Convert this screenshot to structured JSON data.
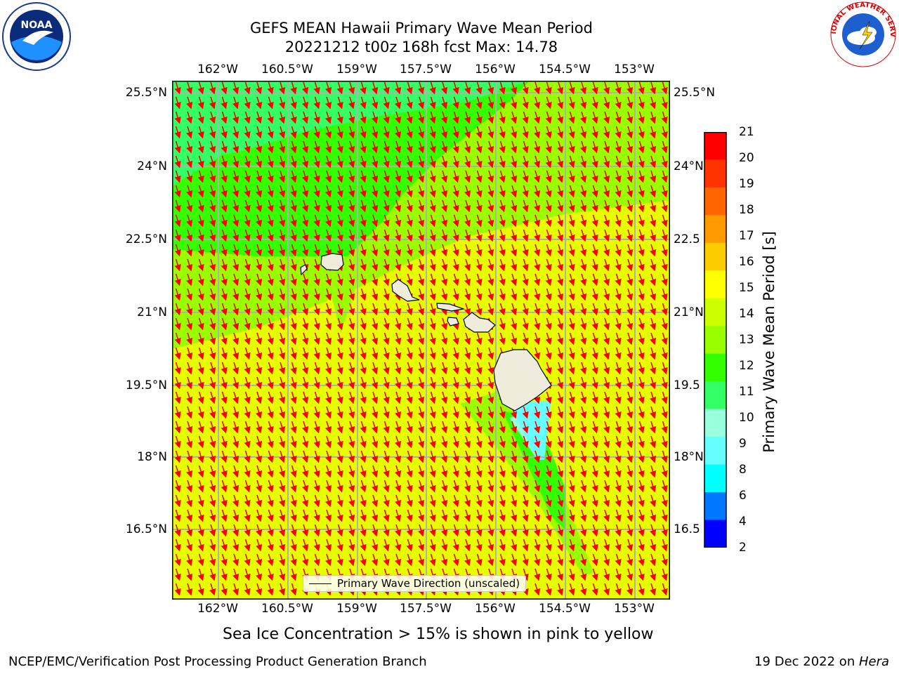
{
  "header": {
    "title_line1": "GEFS MEAN Hawaii Primary Wave Mean Period",
    "title_line2": "20221212 t00z 168h fcst   Max: 14.78"
  },
  "logos": {
    "left": {
      "name": "noaa-logo",
      "text": "NOAA"
    },
    "right": {
      "name": "nws-logo",
      "text": "NATIONAL WEATHER SERVICE"
    }
  },
  "map": {
    "lon_ticks": [
      "162°W",
      "160.5°W",
      "159°W",
      "157.5°W",
      "156°W",
      "154.5°W",
      "153°W"
    ],
    "lat_ticks_left": [
      "25.5°N",
      "24°N",
      "22.5°N",
      "21°N",
      "19.5°N",
      "18°N",
      "16.5°N"
    ],
    "lat_ticks_right": [
      "25.5°N",
      "24°N",
      "22.5",
      "21°N",
      "19.5",
      "18°N",
      "16.5"
    ],
    "legend": "Primary Wave Direction (unscaled)",
    "vector_color": "#ff0000",
    "grid_color": "#b0b0b0",
    "land_color": "#f0ecdc"
  },
  "colorbar": {
    "label": "Primary Wave Mean Period [s]",
    "ticks": [
      "21",
      "20",
      "19",
      "18",
      "17",
      "16",
      "15",
      "14",
      "13",
      "12",
      "11",
      "10",
      "9",
      "8",
      "6",
      "4",
      "2"
    ],
    "colors": [
      "#ff0000",
      "#ff3300",
      "#ff6600",
      "#ff9900",
      "#ffcc00",
      "#ffff00",
      "#ccff00",
      "#99ff00",
      "#33ff00",
      "#33ff66",
      "#99ffdd",
      "#66ffff",
      "#00ffff",
      "#0077ff",
      "#0000ff"
    ]
  },
  "notes": {
    "sea_ice": "Sea Ice Concentration > 15% is shown in pink to yellow"
  },
  "footer": {
    "left": "NCEP/EMC/Verification Post Processing Product Generation Branch",
    "right_prefix": "19 Dec 2022 on ",
    "right_host": "Hera"
  }
}
